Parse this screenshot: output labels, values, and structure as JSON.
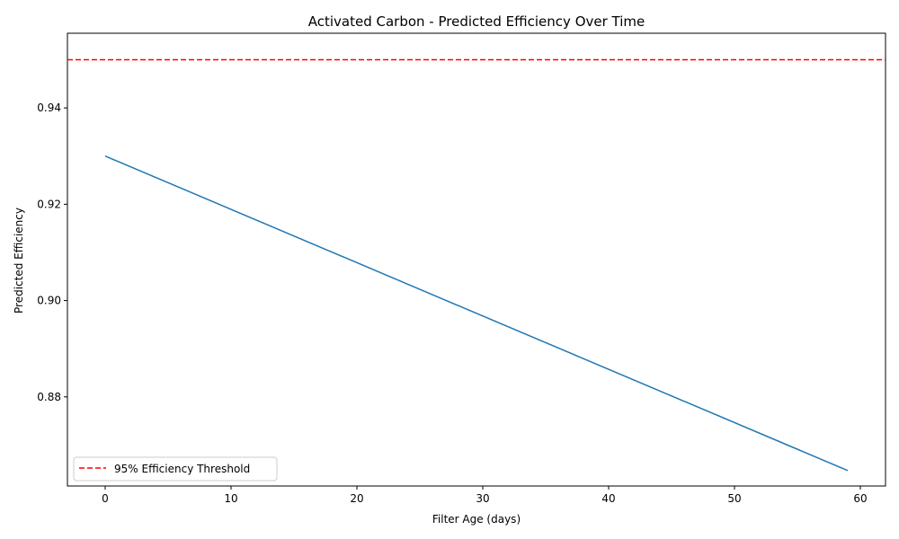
{
  "chart_data": {
    "type": "line",
    "title": "Activated Carbon - Predicted Efficiency Over Time",
    "xlabel": "Filter Age (days)",
    "ylabel": "Predicted Efficiency",
    "xlim": [
      -3,
      62
    ],
    "ylim": [
      0.8615,
      0.9555
    ],
    "xticks": [
      0,
      10,
      20,
      30,
      40,
      50,
      60
    ],
    "yticks": [
      0.88,
      0.9,
      0.92,
      0.94
    ],
    "xtick_labels": [
      "0",
      "10",
      "20",
      "30",
      "40",
      "50",
      "60"
    ],
    "ytick_labels": [
      "0.88",
      "0.90",
      "0.92",
      "0.94"
    ],
    "grid": false,
    "legend_position": "lower-left",
    "series": [
      {
        "x": [
          0,
          59
        ],
        "y": [
          0.93,
          0.8647
        ],
        "color": "#1f77b4"
      }
    ],
    "reference_lines": [
      {
        "name": "95% Efficiency Threshold",
        "orientation": "horizontal",
        "y": 0.95,
        "color": "#ff0000",
        "style": "dashed"
      }
    ]
  }
}
